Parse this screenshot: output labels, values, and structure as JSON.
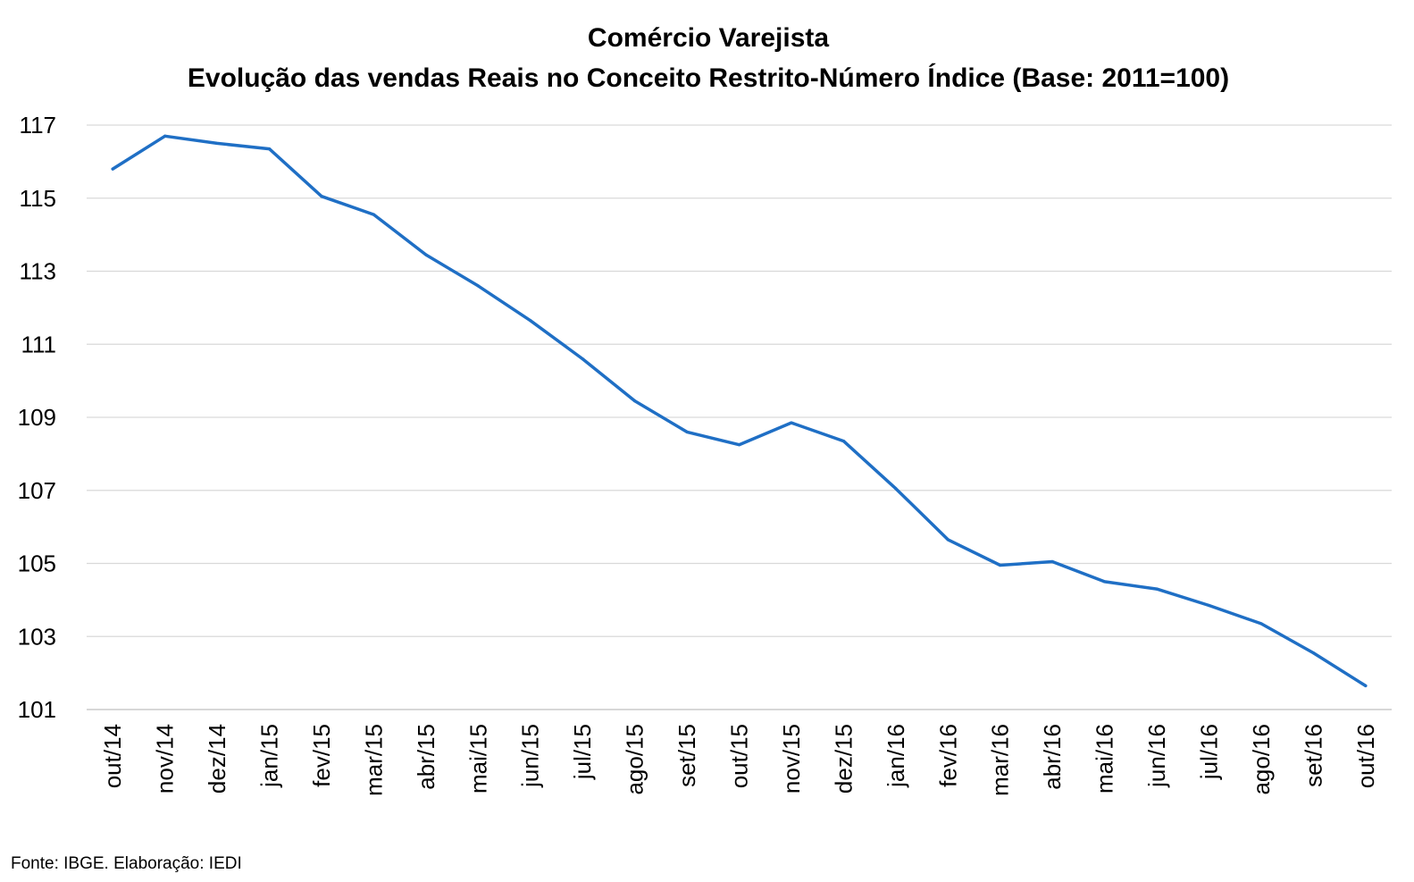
{
  "chart_data": {
    "type": "line",
    "title": "Comércio Varejista",
    "subtitle": "Evolução das vendas Reais no Conceito Restrito-Número Índice (Base: 2011=100)",
    "xlabel": "",
    "ylabel": "",
    "ylim": [
      101,
      117
    ],
    "yticks": [
      "117",
      "115",
      "113",
      "111",
      "109",
      "107",
      "105",
      "103",
      "101"
    ],
    "grid": true,
    "legend": "none",
    "categories": [
      "out/14",
      "nov/14",
      "dez/14",
      "jan/15",
      "fev/15",
      "mar/15",
      "abr/15",
      "mai/15",
      "jun/15",
      "jul/15",
      "ago/15",
      "set/15",
      "out/15",
      "nov/15",
      "dez/15",
      "jan/16",
      "fev/16",
      "mar/16",
      "abr/16",
      "mai/16",
      "jun/16",
      "jul/16",
      "ago/16",
      "set/16",
      "out/16"
    ],
    "series": [
      {
        "color": "#1f6fc5",
        "values": [
          115.8,
          116.7,
          116.5,
          116.35,
          115.05,
          114.55,
          113.45,
          112.6,
          111.65,
          110.6,
          109.45,
          108.6,
          108.25,
          108.85,
          108.35,
          107.05,
          105.65,
          104.95,
          105.05,
          104.5,
          104.3,
          103.85,
          103.35,
          102.55,
          101.65
        ]
      }
    ],
    "source": "Fonte: IBGE. Elaboração: IEDI"
  }
}
